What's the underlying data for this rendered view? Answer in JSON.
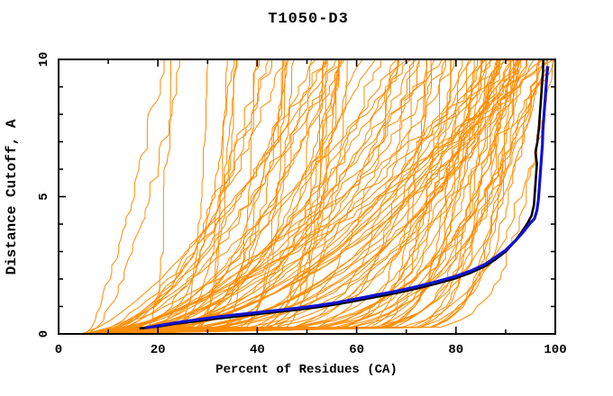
{
  "chart_data": {
    "type": "line",
    "title": "T1050-D3",
    "xlabel": "Percent of Residues (CA)",
    "ylabel": "Distance Cutoff, A",
    "xlim": [
      0,
      100
    ],
    "ylim": [
      0,
      10
    ],
    "grid": false,
    "legend": null,
    "frame_color": "#000000",
    "background_color": "#ffffff",
    "x_axis": {
      "major_ticks": [
        0,
        20,
        40,
        60,
        80,
        100
      ],
      "major_tick_labels": [
        "0",
        "20",
        "40",
        "60",
        "80",
        "100"
      ],
      "minor_ticks": [
        10,
        30,
        50,
        70,
        90
      ]
    },
    "y_axis": {
      "major_ticks": [
        0,
        5,
        10
      ],
      "major_tick_labels": [
        "0",
        "5",
        "10"
      ],
      "minor_ticks": [
        1,
        2,
        3,
        4,
        6,
        7,
        8,
        9
      ],
      "tick_label_rotation": -90
    },
    "series": [
      {
        "name": "highlighted-model-black",
        "color": "#000000",
        "width": 2.6,
        "points": [
          [
            16.3,
            0.2
          ],
          [
            20,
            0.27
          ],
          [
            24,
            0.38
          ],
          [
            28,
            0.47
          ],
          [
            32,
            0.56
          ],
          [
            36,
            0.64
          ],
          [
            40,
            0.72
          ],
          [
            44,
            0.8
          ],
          [
            48,
            0.88
          ],
          [
            52,
            0.97
          ],
          [
            56,
            1.08
          ],
          [
            60,
            1.21
          ],
          [
            64,
            1.35
          ],
          [
            68,
            1.49
          ],
          [
            72,
            1.65
          ],
          [
            76,
            1.83
          ],
          [
            80,
            2.03
          ],
          [
            83,
            2.23
          ],
          [
            86,
            2.48
          ],
          [
            88,
            2.72
          ],
          [
            90,
            3.0
          ],
          [
            91.5,
            3.3
          ],
          [
            93,
            3.65
          ],
          [
            94.3,
            4.0
          ],
          [
            95.2,
            4.3
          ],
          [
            95.7,
            4.7
          ],
          [
            95.9,
            5.2
          ],
          [
            96.1,
            5.7
          ],
          [
            96.3,
            6.2
          ],
          [
            96.0,
            6.6
          ],
          [
            96.4,
            7.0
          ],
          [
            96.7,
            7.5
          ],
          [
            96.9,
            8.0
          ],
          [
            97.1,
            8.5
          ],
          [
            97.3,
            9.0
          ],
          [
            97.5,
            9.5
          ],
          [
            97.6,
            10
          ]
        ]
      },
      {
        "name": "highlighted-model-navy",
        "color": "#1212d0",
        "width": 3.2,
        "points": [
          [
            17.5,
            0.22
          ],
          [
            20,
            0.3
          ],
          [
            24,
            0.42
          ],
          [
            28,
            0.52
          ],
          [
            32,
            0.62
          ],
          [
            36,
            0.7
          ],
          [
            40,
            0.78
          ],
          [
            44,
            0.86
          ],
          [
            48,
            0.94
          ],
          [
            52,
            1.03
          ],
          [
            56,
            1.14
          ],
          [
            60,
            1.28
          ],
          [
            64,
            1.42
          ],
          [
            68,
            1.56
          ],
          [
            72,
            1.72
          ],
          [
            76,
            1.9
          ],
          [
            80,
            2.1
          ],
          [
            83,
            2.3
          ],
          [
            86,
            2.55
          ],
          [
            88,
            2.8
          ],
          [
            90,
            3.05
          ],
          [
            92,
            3.4
          ],
          [
            93.5,
            3.7
          ],
          [
            94.8,
            4.0
          ],
          [
            95.8,
            4.2
          ],
          [
            96.3,
            4.5
          ],
          [
            96.6,
            4.9
          ],
          [
            96.8,
            5.4
          ],
          [
            97.0,
            5.9
          ],
          [
            97.2,
            6.4
          ],
          [
            97.4,
            6.9
          ],
          [
            97.5,
            7.4
          ],
          [
            97.7,
            7.9
          ],
          [
            97.9,
            8.4
          ],
          [
            98.1,
            8.9
          ],
          [
            98.3,
            9.4
          ],
          [
            98.5,
            9.75
          ]
        ]
      }
    ],
    "ensemble": {
      "description": "background cloud of prediction curves (percent of CA residues under each distance cutoff); individual curves unlabeled in source image, regenerated procedurally",
      "count": 110,
      "seed": 20250109,
      "color": "#ff8c00",
      "width": 1,
      "start_x_range": [
        4.5,
        8.0
      ],
      "top_percent_main_range": [
        40,
        99.6
      ],
      "top_percent_main_skew": 0.55,
      "top_percent_low_fraction": 0.17,
      "top_percent_low_range": [
        17,
        55
      ],
      "shape_exponent_range": [
        0.05,
        0.75
      ],
      "shape_exponent_skew": 1.7,
      "jitter_percent": 1.3,
      "y_step": 0.25,
      "x_cap": 99.8
    }
  }
}
